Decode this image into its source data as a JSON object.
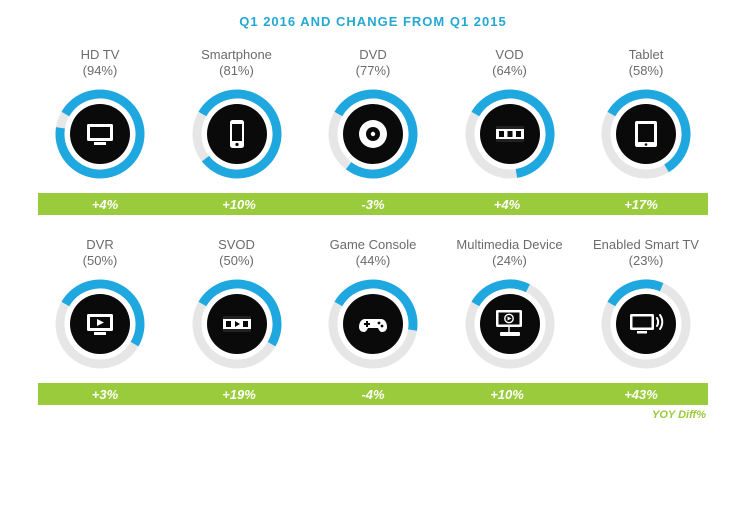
{
  "title_text": "Q1 2016 AND CHANGE FROM Q1 2015",
  "title_color": "#23a8d4",
  "label_color": "#6b6b6b",
  "ring_color": "#1fa8e0",
  "ring_track_color": "#e6e6e6",
  "ring_width": 9,
  "ring_rotate_deg": 210,
  "disc_color": "#0a0a0a",
  "icon_color": "#ffffff",
  "bar_color": "#9acb3c",
  "yoy_label": "YOY Diff%",
  "yoy_color": "#9acb3c",
  "background_color": "#ffffff",
  "rows": [
    {
      "items": [
        {
          "name": "HD TV",
          "pct": 94,
          "diff": "+4%",
          "icon": "hdtv"
        },
        {
          "name": "Smartphone",
          "pct": 81,
          "diff": "+10%",
          "icon": "smartphone"
        },
        {
          "name": "DVD",
          "pct": 77,
          "diff": "-3%",
          "icon": "dvd"
        },
        {
          "name": "VOD",
          "pct": 64,
          "diff": "+4%",
          "icon": "vod"
        },
        {
          "name": "Tablet",
          "pct": 58,
          "diff": "+17%",
          "icon": "tablet"
        }
      ]
    },
    {
      "items": [
        {
          "name": "DVR",
          "pct": 50,
          "diff": "+3%",
          "icon": "dvr"
        },
        {
          "name": "SVOD",
          "pct": 50,
          "diff": "+19%",
          "icon": "svod"
        },
        {
          "name": "Game Console",
          "pct": 44,
          "diff": "-4%",
          "icon": "gameconsole"
        },
        {
          "name": "Multimedia Device",
          "pct": 24,
          "diff": "+10%",
          "icon": "multimedia"
        },
        {
          "name": "Enabled Smart TV",
          "pct": 23,
          "diff": "+43%",
          "icon": "smarttv"
        }
      ]
    }
  ]
}
